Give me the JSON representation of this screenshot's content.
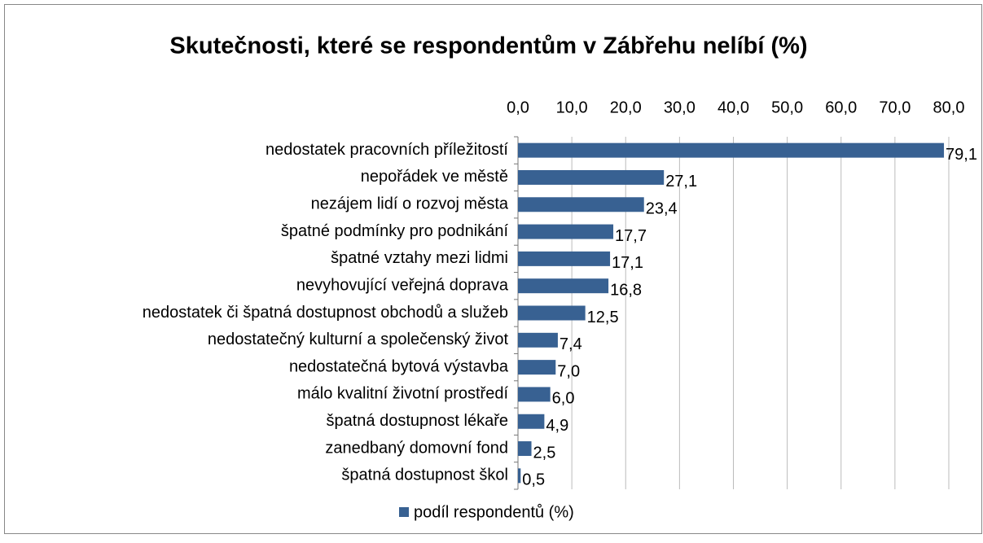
{
  "chart_data": {
    "type": "bar",
    "orientation": "horizontal",
    "title": "Skutečnosti, které se respondentům v Zábřehu nelíbí (%)",
    "categories": [
      "nedostatek pracovních příležitostí",
      "nepořádek ve městě",
      "nezájem lidí o rozvoj města",
      "špatné podmínky pro podnikání",
      "špatné vztahy mezi lidmi",
      "nevyhovující veřejná doprava",
      "nedostatek či špatná dostupnost obchodů a služeb",
      "nedostatečný kulturní a společenský život",
      "nedostatečná bytová výstavba",
      "málo kvalitní životní prostředí",
      "špatná dostupnost lékaře",
      "zanedbaný domovní fond",
      "špatná dostupnost škol"
    ],
    "series": [
      {
        "name": "podíl respondentů (%)",
        "color": "#386192",
        "values": [
          79.1,
          27.1,
          23.4,
          17.7,
          17.1,
          16.8,
          12.5,
          7.4,
          7.0,
          6.0,
          4.9,
          2.5,
          0.5
        ],
        "value_labels": [
          "79,1",
          "27,1",
          "23,4",
          "17,7",
          "17,1",
          "16,8",
          "12,5",
          "7,4",
          "7,0",
          "6,0",
          "4,9",
          "2,5",
          "0,5"
        ]
      }
    ],
    "xlim": [
      0,
      80
    ],
    "xticks": [
      {
        "value": 0,
        "label": "0,0"
      },
      {
        "value": 10,
        "label": "10,0"
      },
      {
        "value": 20,
        "label": "20,0"
      },
      {
        "value": 30,
        "label": "30,0"
      },
      {
        "value": 40,
        "label": "40,0"
      },
      {
        "value": 50,
        "label": "50,0"
      },
      {
        "value": 60,
        "label": "60,0"
      },
      {
        "value": 70,
        "label": "70,0"
      },
      {
        "value": 80,
        "label": "80,0"
      }
    ],
    "grid": true,
    "legend": "bottom"
  }
}
